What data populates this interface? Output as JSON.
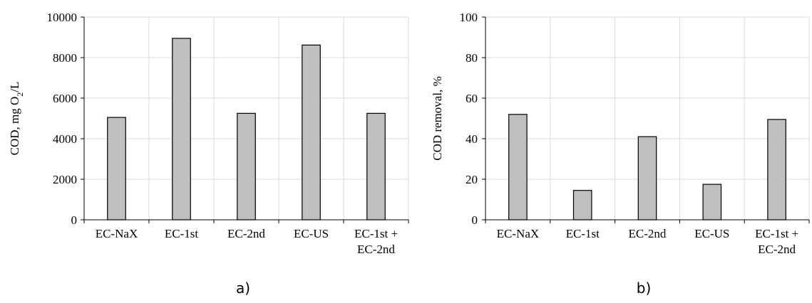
{
  "chart_data": [
    {
      "type": "bar",
      "panel_label": "a)",
      "categories": [
        [
          "EC-NaX"
        ],
        [
          "EC-1st"
        ],
        [
          "EC-2nd"
        ],
        [
          "EC-US"
        ],
        [
          "EC-1st +",
          "EC-2nd"
        ]
      ],
      "values": [
        5050,
        8950,
        5250,
        8620,
        5250
      ],
      "ylabel": {
        "main": "COD, mg O",
        "sub": "2",
        "tail": "/L"
      },
      "ylim": [
        0,
        10000
      ],
      "yticks": [
        0,
        2000,
        4000,
        6000,
        8000,
        10000
      ],
      "grid": true,
      "bar_color": "#bfbfbf"
    },
    {
      "type": "bar",
      "panel_label": "b)",
      "categories": [
        [
          "EC-NaX"
        ],
        [
          "EC-1st"
        ],
        [
          "EC-2nd"
        ],
        [
          "EC-US"
        ],
        [
          "EC-1st +",
          "EC-2nd"
        ]
      ],
      "values": [
        52,
        14.5,
        41,
        17.5,
        49.5
      ],
      "ylabel": {
        "main": "COD removal,  %",
        "sub": "",
        "tail": ""
      },
      "ylim": [
        0,
        100
      ],
      "yticks": [
        0,
        20,
        40,
        60,
        80,
        100
      ],
      "grid": true,
      "bar_color": "#bfbfbf"
    }
  ]
}
